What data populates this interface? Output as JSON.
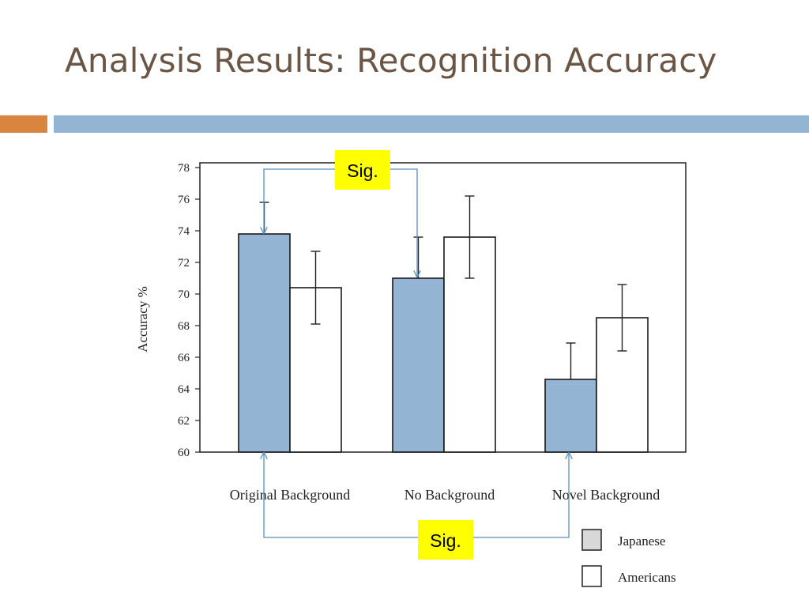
{
  "slide": {
    "title": "Analysis Results: Recognition Accuracy",
    "colors": {
      "title": "#6b5646",
      "accent_left": "#d9843f",
      "accent_right": "#93b4d3"
    }
  },
  "chart_data": {
    "type": "bar",
    "title": "",
    "xlabel": "",
    "ylabel": "Accuracy %",
    "ylim": [
      60,
      78
    ],
    "yticks": [
      60,
      62,
      64,
      66,
      68,
      70,
      72,
      74,
      76,
      78
    ],
    "categories": [
      "Original Background",
      "No Background",
      "Novel Background"
    ],
    "series": [
      {
        "name": "Japanese",
        "values": [
          73.8,
          71.0,
          64.6
        ],
        "errors": [
          2.0,
          2.6,
          2.3
        ],
        "color": "#93b4d3"
      },
      {
        "name": "Americans",
        "values": [
          70.4,
          73.6,
          68.5
        ],
        "errors": [
          2.3,
          2.6,
          2.1
        ],
        "color": "#ffffff"
      }
    ],
    "legend_position": "bottom-right",
    "grid": false,
    "annotations": [
      {
        "label": "Sig.",
        "compares": [
          "Original Background / Japanese",
          "No Background / Japanese"
        ],
        "color": "#ffff00"
      },
      {
        "label": "Sig.",
        "compares": [
          "Original Background / Japanese",
          "Novel Background / Japanese"
        ],
        "color": "#ffff00"
      }
    ]
  }
}
